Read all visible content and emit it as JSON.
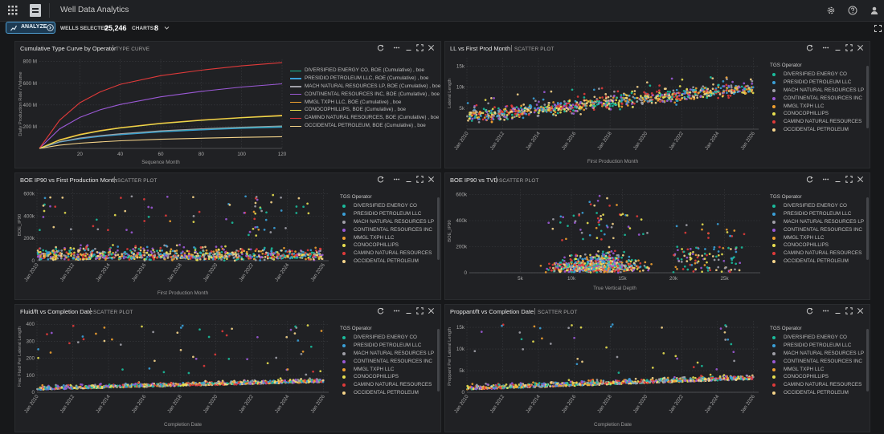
{
  "app": {
    "title": "Well Data Analytics",
    "logo_text": "TGS"
  },
  "toolbar": {
    "analyze_label": "ANALYZE",
    "wells_label": "WELLS SELECTED:",
    "wells_value": "25,246",
    "charts_label": "CHARTS:",
    "charts_value": "8"
  },
  "colors": {
    "accent": "#4e9ed3",
    "operators": [
      "#1abc9c",
      "#3aa0d8",
      "#a0a0a8",
      "#9b59d6",
      "#f0a030",
      "#e8e050",
      "#e03a3a",
      "#f5d48a"
    ]
  },
  "legend": {
    "title": "TGS Operator",
    "operators": [
      "DIVERSIFIED ENERGY CO",
      "PRESIDIO PETROLEUM LLC",
      "MACH NATURAL RESOURCES LP",
      "CONTINENTAL RESOURCES INC",
      "MMGL TXPH LLC",
      "CONOCOPHILLIPS",
      "CAMINO NATURAL RESOURCES",
      "OCCIDENTAL PETROLEUM"
    ]
  },
  "panels": [
    {
      "title": "Cumulative Type Curve by Operator",
      "type": "TYPE CURVE"
    },
    {
      "title": "LL vs First Prod Month",
      "type": "SCATTER PLOT"
    },
    {
      "title": "BOE IP90 vs First Production Month",
      "type": "SCATTER PLOT"
    },
    {
      "title": "BOE IP90 vs TVD",
      "type": "SCATTER PLOT"
    },
    {
      "title": "Fluid/ft vs Completion Date",
      "type": "SCATTER PLOT"
    },
    {
      "title": "Proppant/ft vs Completion Date",
      "type": "SCATTER PLOT"
    }
  ],
  "chart_data": [
    {
      "type": "line",
      "title": "Cumulative Type Curve by Operator",
      "xlabel": "Sequence Month",
      "ylabel": "Daily Production Rate / Volume",
      "x_ticks": [
        20,
        40,
        60,
        80,
        100,
        120
      ],
      "y_ticks": [
        "200 M",
        "400 M",
        "600 M",
        "800 M"
      ],
      "xlim": [
        0,
        120
      ],
      "ylim": [
        0,
        820
      ],
      "x": [
        0,
        10,
        20,
        30,
        40,
        60,
        80,
        100,
        120
      ],
      "series": [
        {
          "name": "DIVERSIFIED ENERGY CO, BOE (Cumulative) , boe",
          "color": "#1abc9c",
          "values": [
            0,
            60,
            92,
            115,
            132,
            158,
            176,
            190,
            200
          ]
        },
        {
          "name": "PRESIDIO PETROLEUM LLC, BOE (Cumulative) , boe",
          "color": "#3aa0d8",
          "values": [
            0,
            58,
            88,
            110,
            126,
            152,
            170,
            185,
            195
          ]
        },
        {
          "name": "MACH NATURAL RESOURCES LP, BOE (Cumulative) , boe",
          "color": "#a0a0a8",
          "values": [
            0,
            62,
            95,
            118,
            135,
            162,
            180,
            196,
            207
          ]
        },
        {
          "name": "CONTINENTAL RESOURCES INC, BOE (Cumulative) , boe",
          "color": "#9b59d6",
          "values": [
            0,
            180,
            285,
            355,
            405,
            475,
            525,
            565,
            595
          ]
        },
        {
          "name": "MMGL TXPH LLC, BOE (Cumulative) , boe",
          "color": "#f0a030",
          "values": [
            0,
            80,
            130,
            165,
            192,
            232,
            262,
            285,
            305
          ]
        },
        {
          "name": "CONOCOPHILLIPS, BOE (Cumulative) , boe",
          "color": "#e8e050",
          "values": [
            0,
            75,
            125,
            160,
            188,
            228,
            258,
            282,
            300
          ]
        },
        {
          "name": "CAMINO NATURAL RESOURCES, BOE (Cumulative) , boe",
          "color": "#e03a3a",
          "values": [
            0,
            260,
            420,
            520,
            590,
            670,
            720,
            760,
            790
          ]
        },
        {
          "name": "OCCIDENTAL PETROLEUM, BOE (Cumulative) , boe",
          "color": "#f5d48a",
          "values": [
            0,
            30,
            48,
            60,
            70,
            84,
            94,
            102,
            108
          ]
        }
      ]
    },
    {
      "type": "scatter",
      "title": "LL vs First Prod Month",
      "xlabel": "First Production Month",
      "ylabel": "Lateral Length",
      "x_ticks": [
        "Jan 2010",
        "Jan 2012",
        "Jan 2014",
        "Jan 2016",
        "Jan 2018",
        "Jan 2020",
        "Jan 2022",
        "Jan 2024",
        "Jan 2026"
      ],
      "y_ticks": [
        "5k",
        "10k",
        "15k"
      ],
      "xlim": [
        2010,
        2026.3
      ],
      "ylim": [
        0,
        17000
      ],
      "pattern": "ll",
      "legend_title": "TGS Operator"
    },
    {
      "type": "scatter",
      "title": "BOE IP90 vs First Production Month",
      "xlabel": "First Production Month",
      "ylabel": "BOE_IP90",
      "x_ticks": [
        "Jan 2010",
        "Jan 2012",
        "Jan 2014",
        "Jan 2016",
        "Jan 2018",
        "Jan 2020",
        "Jan 2022",
        "Jan 2024",
        "Jan 2026"
      ],
      "y_ticks": [
        "0",
        "200k",
        "400k",
        "600k"
      ],
      "xlim": [
        2010,
        2026.3
      ],
      "ylim": [
        0,
        640000
      ],
      "pattern": "ip90date",
      "legend_title": "TGS Operator"
    },
    {
      "type": "scatter",
      "title": "BOE IP90 vs TVD",
      "xlabel": "True Vertical Depth",
      "ylabel": "BOE_IP90",
      "x_ticks": [
        "5k",
        "10k",
        "15k",
        "20k",
        "25k"
      ],
      "y_ticks": [
        "0",
        "200k",
        "400k",
        "600k"
      ],
      "xlim": [
        0,
        28500
      ],
      "ylim": [
        0,
        640000
      ],
      "pattern": "tvd",
      "legend_title": "TGS Operator"
    },
    {
      "type": "scatter",
      "title": "Fluid/ft vs Completion Date",
      "xlabel": "Completion Date",
      "ylabel": "Frac Fluid Per Lateral Length",
      "x_ticks": [
        "Jan 2010",
        "Jan 2012",
        "Jan 2014",
        "Jan 2016",
        "Jan 2018",
        "Jan 2020",
        "Jan 2022",
        "Jan 2024",
        "Jan 2026"
      ],
      "y_ticks": [
        "0",
        "100",
        "200",
        "300",
        "400"
      ],
      "xlim": [
        2010,
        2026.3
      ],
      "ylim": [
        0,
        420
      ],
      "pattern": "fluid",
      "legend_title": "TGS Operator"
    },
    {
      "type": "scatter",
      "title": "Proppant/ft vs Completion Date",
      "xlabel": "Completion Date",
      "ylabel": "Proppant Per Lateral Length",
      "x_ticks": [
        "Jan 2010",
        "Jan 2012",
        "Jan 2014",
        "Jan 2016",
        "Jan 2018",
        "Jan 2020",
        "Jan 2022",
        "Jan 2024",
        "Jan 2026"
      ],
      "y_ticks": [
        "0",
        "5k",
        "10k",
        "15k"
      ],
      "xlim": [
        2010,
        2026.3
      ],
      "ylim": [
        0,
        16500
      ],
      "pattern": "proppant",
      "legend_title": "TGS Operator"
    }
  ]
}
